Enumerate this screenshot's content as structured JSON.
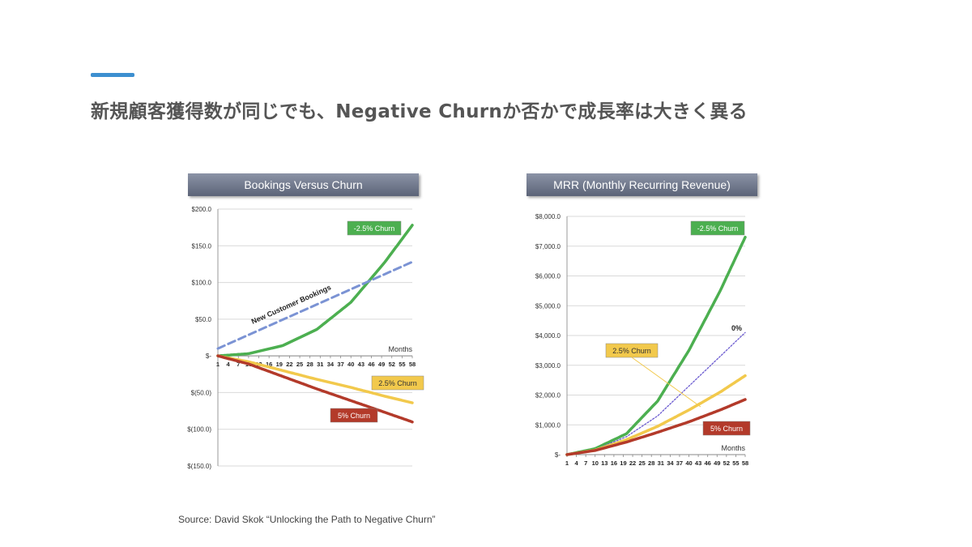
{
  "slide": {
    "title": "新規顧客獲得数が同じでも、Negative Churnか否かで成長率は大きく異る",
    "source": "Source: David Skok “Unlocking the Path to Negative Churn”",
    "accent_color": "#3d8fd0"
  },
  "chart_data": [
    {
      "type": "line",
      "title": "Bookings Versus Churn",
      "xlabel": "Months",
      "x_ticks": [
        "1",
        "4",
        "7",
        "10",
        "13",
        "16",
        "19",
        "22",
        "25",
        "28",
        "31",
        "34",
        "37",
        "40",
        "43",
        "46",
        "49",
        "52",
        "55",
        "58"
      ],
      "y_ticks": [
        "$200.0",
        "$150.0",
        "$100.0",
        "$50.0",
        "$-",
        "$(50.0)",
        "$(100.0)",
        "$(150.0)"
      ],
      "ylim": [
        -150,
        200
      ],
      "xlim": [
        1,
        58
      ],
      "grid": true,
      "series": [
        {
          "name": "-2.5% Churn",
          "color": "#4caf50",
          "style": "solid",
          "x": [
            1,
            10,
            20,
            30,
            40,
            50,
            58
          ],
          "values": [
            0,
            3,
            14,
            36,
            73,
            128,
            178
          ]
        },
        {
          "name": "New Customer Bookings",
          "color": "#7b93d4",
          "style": "dashed",
          "x": [
            1,
            58
          ],
          "values": [
            10,
            128
          ]
        },
        {
          "name": "2.5% Churn",
          "color": "#f2c94c",
          "style": "solid",
          "x": [
            1,
            10,
            20,
            30,
            40,
            50,
            58
          ],
          "values": [
            0,
            -8,
            -20,
            -32,
            -43,
            -55,
            -64
          ]
        },
        {
          "name": "5% Churn",
          "color": "#b33a2a",
          "style": "solid",
          "x": [
            1,
            10,
            20,
            30,
            40,
            50,
            58
          ],
          "values": [
            0,
            -11,
            -28,
            -45,
            -61,
            -77,
            -90
          ]
        }
      ]
    },
    {
      "type": "line",
      "title": "MRR (Monthly Recurring Revenue)",
      "xlabel": "Months",
      "x_ticks": [
        "1",
        "4",
        "7",
        "10",
        "13",
        "16",
        "19",
        "22",
        "25",
        "28",
        "31",
        "34",
        "37",
        "40",
        "43",
        "46",
        "49",
        "52",
        "55",
        "58"
      ],
      "y_ticks": [
        "$8,000.0",
        "$7,000.0",
        "$6,000.0",
        "$5,000.0",
        "$4,000.0",
        "$3,000.0",
        "$2,000.0",
        "$1,000.0",
        "$-"
      ],
      "ylim": [
        0,
        8000
      ],
      "xlim": [
        1,
        58
      ],
      "grid": true,
      "series": [
        {
          "name": "-2.5% Churn",
          "color": "#4caf50",
          "style": "solid",
          "x": [
            1,
            10,
            20,
            30,
            40,
            50,
            58
          ],
          "values": [
            0,
            200,
            700,
            1800,
            3500,
            5500,
            7300
          ]
        },
        {
          "name": "0%",
          "color": "#6b5bd0",
          "style": "dotted",
          "x": [
            1,
            10,
            20,
            30,
            40,
            50,
            58
          ],
          "values": [
            0,
            170,
            600,
            1300,
            2300,
            3300,
            4100
          ]
        },
        {
          "name": "2.5% Churn",
          "color": "#f2c94c",
          "style": "solid",
          "x": [
            1,
            10,
            20,
            30,
            40,
            50,
            58
          ],
          "values": [
            0,
            150,
            500,
            950,
            1500,
            2100,
            2650
          ]
        },
        {
          "name": "5% Churn",
          "color": "#b33a2a",
          "style": "solid",
          "x": [
            1,
            10,
            20,
            30,
            40,
            50,
            58
          ],
          "values": [
            0,
            140,
            420,
            750,
            1100,
            1500,
            1850
          ]
        }
      ]
    }
  ]
}
